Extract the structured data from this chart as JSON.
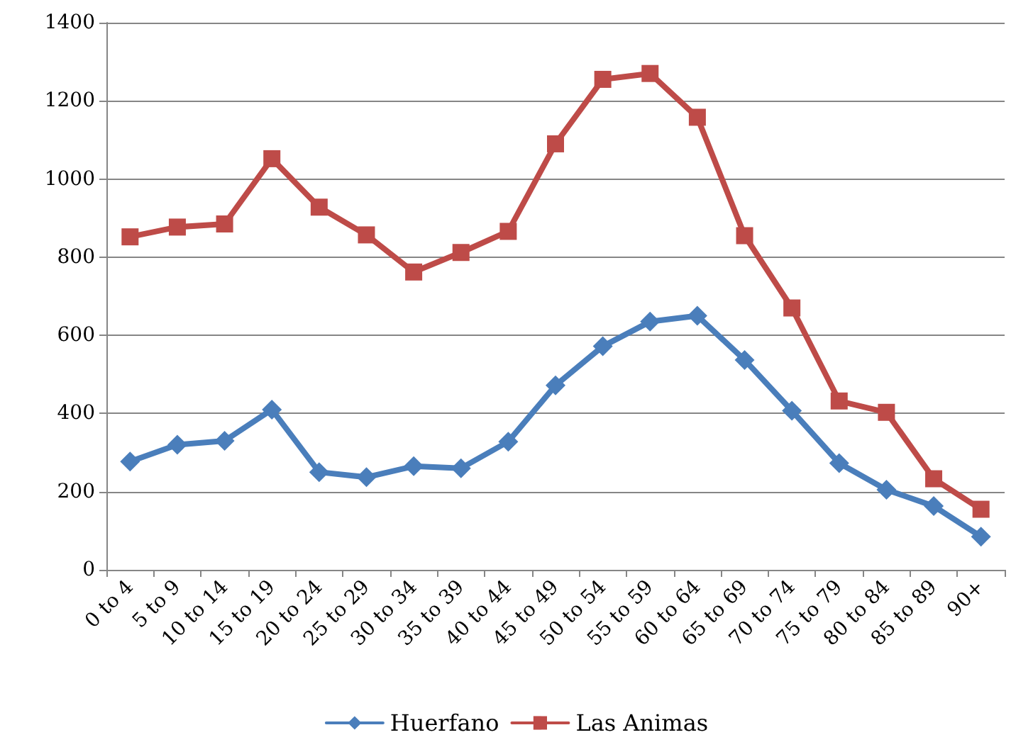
{
  "chart_data": {
    "type": "line",
    "categories": [
      "0 to 4",
      "5 to 9",
      "10 to 14",
      "15 to 19",
      "20 to 24",
      "25 to 29",
      "30 to 34",
      "35 to 39",
      "40 to 44",
      "45 to 49",
      "50 to 54",
      "55 to 59",
      "60 to 64",
      "65 to 69",
      "70 to 74",
      "75 to 79",
      "80 to 84",
      "85 to 89",
      "90+"
    ],
    "series": [
      {
        "name": "Huerfano",
        "color": "#4a7ebb",
        "marker": "diamond",
        "values": [
          277,
          320,
          330,
          410,
          250,
          237,
          265,
          260,
          328,
          472,
          572,
          635,
          650,
          537,
          407,
          273,
          205,
          163,
          85
        ]
      },
      {
        "name": "Las Animas",
        "color": "#be4b48",
        "marker": "square",
        "values": [
          852,
          877,
          885,
          1052,
          928,
          857,
          762,
          812,
          866,
          1090,
          1255,
          1270,
          1158,
          855,
          670,
          432,
          403,
          233,
          155
        ]
      }
    ],
    "ylim": [
      0,
      1400
    ],
    "yticks": [
      0,
      200,
      400,
      600,
      800,
      1000,
      1200,
      1400
    ],
    "grid": "y",
    "legend": "bottom",
    "line_style": "solid"
  }
}
